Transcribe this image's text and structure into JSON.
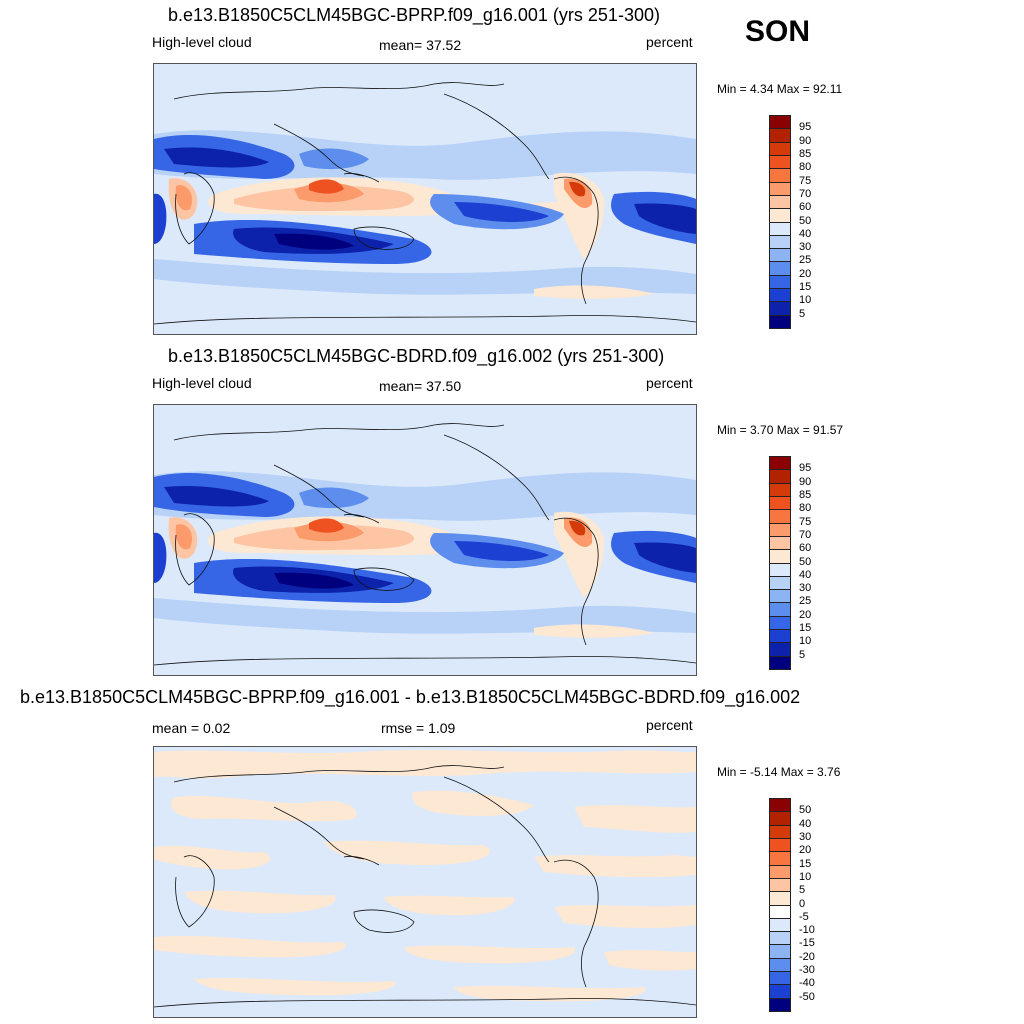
{
  "season": "SON",
  "units": "percent",
  "panels": [
    {
      "title": "b.e13.B1850C5CLM45BGC-BPRP.f09_g16.001 (yrs 251-300)",
      "left_label": "High-level cloud",
      "center_label": "mean=  37.52",
      "right_label": "percent",
      "minmax": "Min =   4.34 Max =  92.11",
      "colorbar": {
        "labels": [
          "95",
          "90",
          "85",
          "80",
          "75",
          "70",
          "60",
          "50",
          "40",
          "30",
          "25",
          "20",
          "15",
          "10",
          "5"
        ],
        "colors": [
          "#8b0000",
          "#b22200",
          "#d53a0a",
          "#ee5220",
          "#f7763f",
          "#fb9a6a",
          "#fdc5a3",
          "#fde8d4",
          "#dbe9fb",
          "#b7d1f7",
          "#8db4f2",
          "#5d8eee",
          "#3666e6",
          "#1b40d2",
          "#0c22aa",
          "#00007f"
        ]
      },
      "type": "mean"
    },
    {
      "title": "b.e13.B1850C5CLM45BGC-BDRD.f09_g16.002 (yrs 251-300)",
      "left_label": "High-level cloud",
      "center_label": "mean=  37.50",
      "right_label": "percent",
      "minmax": "Min =   3.70 Max =  91.57",
      "colorbar": {
        "labels": [
          "95",
          "90",
          "85",
          "80",
          "75",
          "70",
          "60",
          "50",
          "40",
          "30",
          "25",
          "20",
          "15",
          "10",
          "5"
        ],
        "colors": [
          "#8b0000",
          "#b22200",
          "#d53a0a",
          "#ee5220",
          "#f7763f",
          "#fb9a6a",
          "#fdc5a3",
          "#fde8d4",
          "#dbe9fb",
          "#b7d1f7",
          "#8db4f2",
          "#5d8eee",
          "#3666e6",
          "#1b40d2",
          "#0c22aa",
          "#00007f"
        ]
      },
      "type": "mean"
    },
    {
      "title": "b.e13.B1850C5CLM45BGC-BPRP.f09_g16.001 - b.e13.B1850C5CLM45BGC-BDRD.f09_g16.002",
      "left_label": "mean =   0.02",
      "center_label": "rmse =   1.09",
      "right_label": "percent",
      "minmax": "Min =  -5.14 Max =   3.76",
      "colorbar": {
        "labels": [
          "50",
          "40",
          "30",
          "20",
          "15",
          "10",
          "5",
          "0",
          "-5",
          "-10",
          "-15",
          "-20",
          "-30",
          "-40",
          "-50"
        ],
        "colors": [
          "#8b0000",
          "#b22200",
          "#d53a0a",
          "#ee5220",
          "#f7763f",
          "#fb9a6a",
          "#fdc5a3",
          "#fde8d4",
          "#ffffff",
          "#dbe9fb",
          "#b7d1f7",
          "#8db4f2",
          "#5d8eee",
          "#3666e6",
          "#1b40d2",
          "#00007f"
        ]
      },
      "type": "diff"
    }
  ]
}
